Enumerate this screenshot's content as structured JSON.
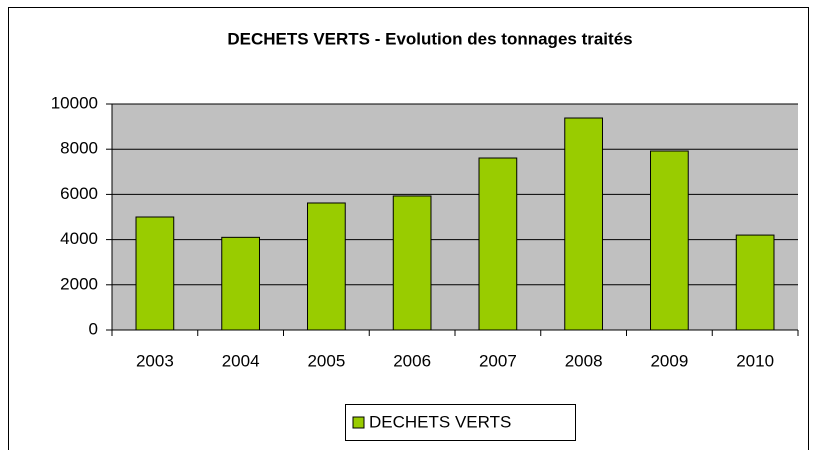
{
  "chart_data": {
    "type": "bar",
    "title": "DECHETS VERTS - Evolution des tonnages traités",
    "categories": [
      "2003",
      "2004",
      "2005",
      "2006",
      "2007",
      "2008",
      "2009",
      "2010"
    ],
    "series": [
      {
        "name": "DECHETS VERTS",
        "color": "#99cc00",
        "values": [
          5000,
          4100,
          5620,
          5930,
          7610,
          9380,
          7920,
          4200
        ]
      }
    ],
    "ylim": [
      0,
      10000
    ],
    "yticks": [
      0,
      2000,
      4000,
      6000,
      8000,
      10000
    ],
    "grid": true,
    "legend": "bottom"
  }
}
